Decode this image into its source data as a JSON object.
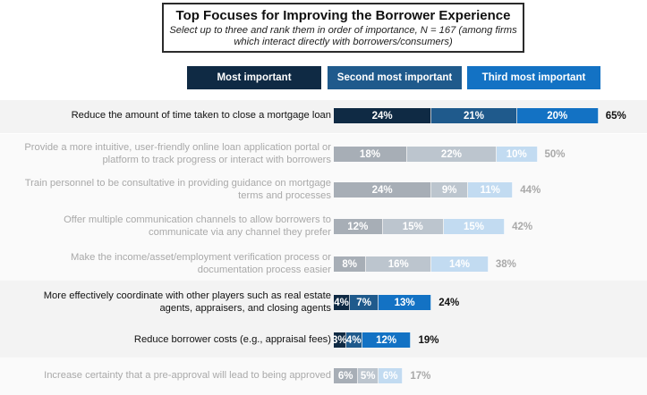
{
  "header": {
    "title": "Top Focuses for Improving the Borrower Experience",
    "subtitle": "Select up to three and rank them in order of importance, N = 167 (among firms which interact directly with borrowers/consumers)"
  },
  "colors": {
    "most": "#0f2a44",
    "second": "#1f5a8c",
    "third": "#1372c4",
    "most_muted": "#a7aeb6",
    "second_muted": "#bcc5ce",
    "third_muted": "#c2dbf1"
  },
  "chart_data": {
    "type": "bar",
    "orientation": "horizontal",
    "stacked": true,
    "title": "Top Focuses for Improving the Borrower Experience",
    "xlabel": "",
    "ylabel": "",
    "series": [
      {
        "name": "Most important",
        "values": [
          24,
          18,
          24,
          12,
          8,
          4,
          3,
          6
        ]
      },
      {
        "name": "Second most important",
        "values": [
          21,
          22,
          9,
          15,
          16,
          7,
          4,
          5
        ]
      },
      {
        "name": "Third most important",
        "values": [
          20,
          10,
          11,
          15,
          14,
          13,
          12,
          6
        ]
      }
    ],
    "categories": [
      "Reduce the amount of time taken to close a mortgage loan",
      "Provide a more intuitive, user-friendly online loan application portal or platform to track progress or interact with borrowers",
      "Train personnel to be consultative in providing guidance on mortgage terms and processes",
      "Offer multiple communication channels to allow borrowers to communicate via any channel they prefer",
      "Make the income/asset/employment verification process or documentation process easier",
      "More effectively coordinate with other players such as real estate agents, appraisers, and closing agents",
      "Reduce borrower costs (e.g., appraisal fees)",
      "Increase certainty that a pre-approval will lead to being approved"
    ],
    "totals": [
      65,
      50,
      44,
      42,
      38,
      24,
      19,
      17
    ],
    "highlighted": [
      true,
      false,
      false,
      false,
      false,
      true,
      true,
      false
    ],
    "value_suffix": "%"
  }
}
